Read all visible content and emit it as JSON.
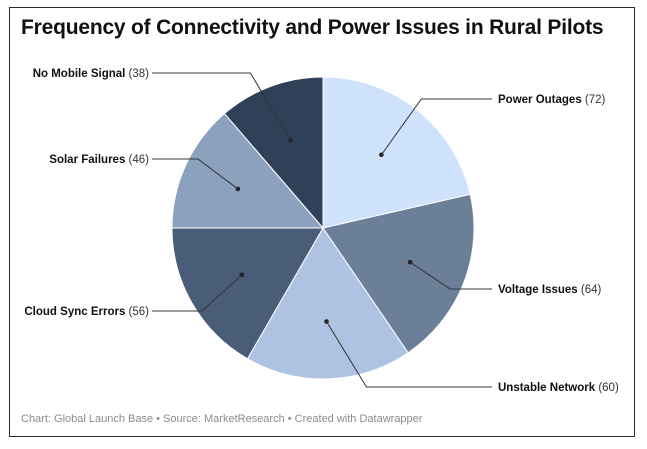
{
  "chart_data": {
    "type": "pie",
    "title": "Frequency of Connectivity and Power Issues in Rural Pilots",
    "categories": [
      "Power Outages",
      "Voltage Issues",
      "Unstable Network",
      "Cloud Sync Errors",
      "Solar Failures",
      "No Mobile Signal"
    ],
    "values": [
      72,
      64,
      60,
      56,
      46,
      38
    ],
    "colors": [
      "#cfe2fb",
      "#6b7f99",
      "#aec3e2",
      "#4a5d78",
      "#8ca1bd",
      "#2f4159"
    ],
    "label_placement": [
      "right",
      "right",
      "right",
      "left",
      "left",
      "left"
    ],
    "footer": "Chart: Global Launch Base • Source: MarketResearch  • Created with Datawrapper"
  }
}
